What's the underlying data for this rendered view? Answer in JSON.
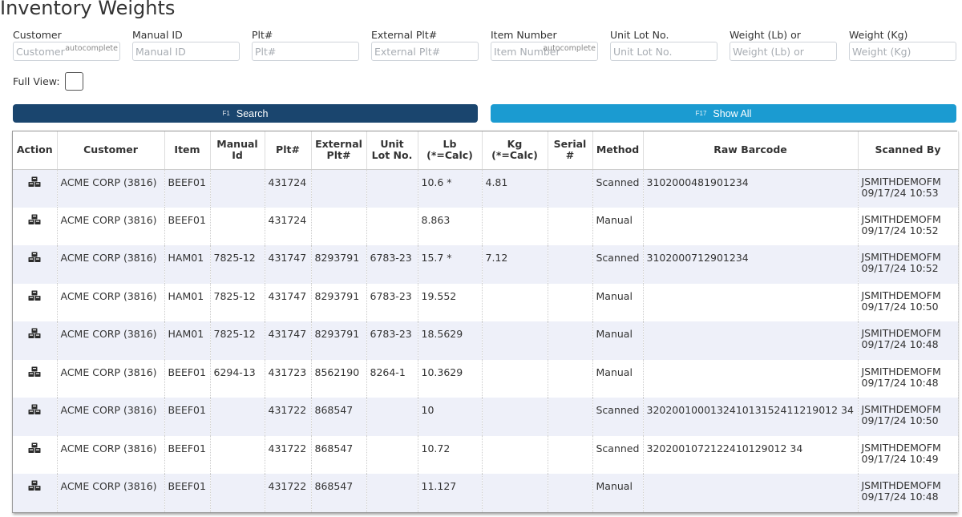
{
  "page": {
    "title": "Inventory Weights"
  },
  "filters": [
    {
      "label": "Customer",
      "placeholder": "Customer",
      "autocomplete": "autocomplete"
    },
    {
      "label": "Manual ID",
      "placeholder": "Manual ID",
      "autocomplete": ""
    },
    {
      "label": "Plt#",
      "placeholder": "Plt#",
      "autocomplete": ""
    },
    {
      "label": "External Plt#",
      "placeholder": "External Plt#",
      "autocomplete": ""
    },
    {
      "label": "Item Number",
      "placeholder": "Item Number",
      "autocomplete": "autocomplete"
    },
    {
      "label": "Unit Lot No.",
      "placeholder": "Unit Lot No.",
      "autocomplete": ""
    },
    {
      "label": "Weight (Lb) or",
      "placeholder": "Weight (Lb) or",
      "autocomplete": ""
    },
    {
      "label": "Weight (Kg)",
      "placeholder": "Weight (Kg)",
      "autocomplete": ""
    }
  ],
  "full_view": {
    "label": "Full View:",
    "checked": false
  },
  "buttons": {
    "search": {
      "key": "F1",
      "label": "Search",
      "color": "#1a456e"
    },
    "show_all": {
      "key": "F17",
      "label": "Show All",
      "color": "#1b9bd1"
    }
  },
  "table": {
    "headers": [
      [
        "Action"
      ],
      [
        "Customer"
      ],
      [
        "Item"
      ],
      [
        "Manual",
        "Id"
      ],
      [
        "Plt#"
      ],
      [
        "External",
        "Plt#"
      ],
      [
        "Unit",
        "Lot No."
      ],
      [
        "Lb",
        "(*=Calc)"
      ],
      [
        "Kg",
        "(*=Calc)"
      ],
      [
        "Serial",
        "#"
      ],
      [
        "Method"
      ],
      [
        "Raw Barcode"
      ],
      [
        "Scanned By"
      ]
    ],
    "action_icon": "pallet-boxes-icon",
    "rows": [
      {
        "customer": "ACME CORP (3816)",
        "item": "BEEF01",
        "manual_id": "",
        "plt": "431724",
        "ext_plt": "",
        "unit_lot": "",
        "lb": "10.6 *",
        "kg": "4.81",
        "serial": "",
        "method": "Scanned",
        "barcode": "3102000481901234",
        "user": "JSMITHDEMOFM",
        "time": "09/17/24 10:53"
      },
      {
        "customer": "ACME CORP (3816)",
        "item": "BEEF01",
        "manual_id": "",
        "plt": "431724",
        "ext_plt": "",
        "unit_lot": "",
        "lb": "8.863",
        "kg": "",
        "serial": "",
        "method": "Manual",
        "barcode": "",
        "user": "JSMITHDEMOFM",
        "time": "09/17/24 10:52"
      },
      {
        "customer": "ACME CORP (3816)",
        "item": "HAM01",
        "manual_id": "7825-12",
        "plt": "431747",
        "ext_plt": "8293791",
        "unit_lot": "6783-23",
        "lb": "15.7 *",
        "kg": "7.12",
        "serial": "",
        "method": "Scanned",
        "barcode": "3102000712901234",
        "user": "JSMITHDEMOFM",
        "time": "09/17/24 10:52"
      },
      {
        "customer": "ACME CORP (3816)",
        "item": "HAM01",
        "manual_id": "7825-12",
        "plt": "431747",
        "ext_plt": "8293791",
        "unit_lot": "6783-23",
        "lb": "19.552",
        "kg": "",
        "serial": "",
        "method": "Manual",
        "barcode": "",
        "user": "JSMITHDEMOFM",
        "time": "09/17/24 10:50"
      },
      {
        "customer": "ACME CORP (3816)",
        "item": "HAM01",
        "manual_id": "7825-12",
        "plt": "431747",
        "ext_plt": "8293791",
        "unit_lot": "6783-23",
        "lb": "18.5629",
        "kg": "",
        "serial": "",
        "method": "Manual",
        "barcode": "",
        "user": "JSMITHDEMOFM",
        "time": "09/17/24 10:48"
      },
      {
        "customer": "ACME CORP (3816)",
        "item": "BEEF01",
        "manual_id": "6294-13",
        "plt": "431723",
        "ext_plt": "8562190",
        "unit_lot": "8264-1",
        "lb": "10.3629",
        "kg": "",
        "serial": "",
        "method": "Manual",
        "barcode": "",
        "user": "JSMITHDEMOFM",
        "time": "09/17/24 10:48"
      },
      {
        "customer": "ACME CORP (3816)",
        "item": "BEEF01",
        "manual_id": "",
        "plt": "431722",
        "ext_plt": "868547",
        "unit_lot": "",
        "lb": "10",
        "kg": "",
        "serial": "",
        "method": "Scanned",
        "barcode": "320200100013241013152411219012 34",
        "user": "JSMITHDEMOFM",
        "time": "09/17/24 10:50"
      },
      {
        "customer": "ACME CORP (3816)",
        "item": "BEEF01",
        "manual_id": "",
        "plt": "431722",
        "ext_plt": "868547",
        "unit_lot": "",
        "lb": "10.72",
        "kg": "",
        "serial": "",
        "method": "Scanned",
        "barcode": "3202001072122410129012 34",
        "user": "JSMITHDEMOFM",
        "time": "09/17/24 10:49"
      },
      {
        "customer": "ACME CORP (3816)",
        "item": "BEEF01",
        "manual_id": "",
        "plt": "431722",
        "ext_plt": "868547",
        "unit_lot": "",
        "lb": "11.127",
        "kg": "",
        "serial": "",
        "method": "Manual",
        "barcode": "",
        "user": "JSMITHDEMOFM",
        "time": "09/17/24 10:48"
      }
    ]
  }
}
